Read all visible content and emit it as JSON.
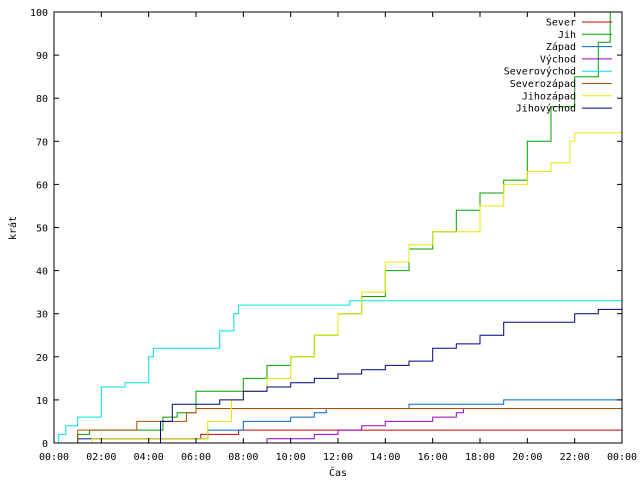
{
  "chart_data": {
    "type": "line",
    "xlabel": "Čas",
    "ylabel": "krát",
    "xlim": [
      0,
      24
    ],
    "ylim": [
      0,
      100
    ],
    "x_ticks": [
      {
        "v": 0,
        "label": "00:00"
      },
      {
        "v": 2,
        "label": "02:00"
      },
      {
        "v": 4,
        "label": "04:00"
      },
      {
        "v": 6,
        "label": "06:00"
      },
      {
        "v": 8,
        "label": "08:00"
      },
      {
        "v": 10,
        "label": "10:00"
      },
      {
        "v": 12,
        "label": "12:00"
      },
      {
        "v": 14,
        "label": "14:00"
      },
      {
        "v": 16,
        "label": "16:00"
      },
      {
        "v": 18,
        "label": "18:00"
      },
      {
        "v": 20,
        "label": "20:00"
      },
      {
        "v": 22,
        "label": "22:00"
      },
      {
        "v": 24,
        "label": "00:00"
      }
    ],
    "y_ticks": [
      0,
      10,
      20,
      30,
      40,
      50,
      60,
      70,
      80,
      90,
      100
    ],
    "legend_position": "top-right",
    "grid": false,
    "series": [
      {
        "name": "Sever",
        "color": "#cc0000",
        "points": [
          [
            0,
            0
          ],
          [
            0.9,
            0
          ],
          [
            1,
            1
          ],
          [
            5.5,
            1
          ],
          [
            6.2,
            2
          ],
          [
            7.5,
            2
          ],
          [
            7.8,
            3
          ],
          [
            24,
            3
          ]
        ]
      },
      {
        "name": "Jih",
        "color": "#00a000",
        "points": [
          [
            0,
            0
          ],
          [
            1,
            2
          ],
          [
            1.5,
            3
          ],
          [
            4,
            3
          ],
          [
            4.6,
            6
          ],
          [
            5.2,
            7
          ],
          [
            6,
            12
          ],
          [
            7.6,
            12
          ],
          [
            8,
            15
          ],
          [
            9,
            18
          ],
          [
            10,
            20
          ],
          [
            11,
            25
          ],
          [
            12,
            30
          ],
          [
            13,
            34
          ],
          [
            14,
            40
          ],
          [
            15,
            45
          ],
          [
            16,
            49
          ],
          [
            17,
            54
          ],
          [
            18,
            58
          ],
          [
            19,
            61
          ],
          [
            20,
            70
          ],
          [
            21,
            78
          ],
          [
            22,
            85
          ],
          [
            23,
            93
          ],
          [
            23.5,
            100
          ]
        ]
      },
      {
        "name": "Západ",
        "color": "#0066cc",
        "points": [
          [
            0,
            0
          ],
          [
            1,
            1
          ],
          [
            5,
            1
          ],
          [
            6.5,
            3
          ],
          [
            8,
            5
          ],
          [
            10,
            6
          ],
          [
            11,
            7
          ],
          [
            11.5,
            8
          ],
          [
            14,
            8
          ],
          [
            15,
            9
          ],
          [
            18,
            9
          ],
          [
            19,
            10
          ],
          [
            24,
            10
          ]
        ]
      },
      {
        "name": "Východ",
        "color": "#9900cc",
        "points": [
          [
            8.8,
            0
          ],
          [
            9,
            1
          ],
          [
            10,
            1
          ],
          [
            11,
            2
          ],
          [
            12,
            3
          ],
          [
            13,
            4
          ],
          [
            14,
            5
          ],
          [
            15,
            5
          ],
          [
            16,
            6
          ],
          [
            17,
            7
          ],
          [
            17.3,
            8
          ]
        ]
      },
      {
        "name": "Severovýchod",
        "color": "#00e0e0",
        "points": [
          [
            0,
            0
          ],
          [
            0.2,
            2
          ],
          [
            0.5,
            4
          ],
          [
            1,
            6
          ],
          [
            2,
            13
          ],
          [
            3,
            14
          ],
          [
            4,
            20
          ],
          [
            4.2,
            22
          ],
          [
            6.5,
            22
          ],
          [
            7,
            26
          ],
          [
            7.6,
            30
          ],
          [
            7.8,
            32
          ],
          [
            12,
            32
          ],
          [
            12.5,
            33
          ],
          [
            24,
            33
          ]
        ]
      },
      {
        "name": "Severozápad",
        "color": "#b05000",
        "points": [
          [
            0,
            0
          ],
          [
            1,
            3
          ],
          [
            3,
            3
          ],
          [
            3.5,
            5
          ],
          [
            5,
            5
          ],
          [
            5.6,
            7
          ],
          [
            6,
            8
          ],
          [
            24,
            8
          ]
        ]
      },
      {
        "name": "Jihozápad",
        "color": "#e8e800",
        "points": [
          [
            0,
            0
          ],
          [
            1.5,
            0
          ],
          [
            1.6,
            1
          ],
          [
            5,
            1
          ],
          [
            6.5,
            5
          ],
          [
            7.5,
            10
          ],
          [
            8,
            12
          ],
          [
            9,
            15
          ],
          [
            10,
            20
          ],
          [
            11,
            25
          ],
          [
            12,
            30
          ],
          [
            13,
            35
          ],
          [
            14,
            42
          ],
          [
            15,
            46
          ],
          [
            16,
            49
          ],
          [
            17,
            49
          ],
          [
            18,
            55
          ],
          [
            19,
            60
          ],
          [
            20,
            63
          ],
          [
            21,
            65
          ],
          [
            21.8,
            70
          ],
          [
            22,
            72
          ],
          [
            24,
            72
          ]
        ]
      },
      {
        "name": "Jihovýchod",
        "color": "#000080",
        "points": [
          [
            0,
            0
          ],
          [
            4,
            0
          ],
          [
            4.5,
            5
          ],
          [
            5,
            9
          ],
          [
            6,
            9
          ],
          [
            7,
            10
          ],
          [
            8,
            12
          ],
          [
            9,
            13
          ],
          [
            10,
            14
          ],
          [
            11,
            15
          ],
          [
            12,
            16
          ],
          [
            13,
            17
          ],
          [
            14,
            18
          ],
          [
            15,
            19
          ],
          [
            16,
            22
          ],
          [
            17,
            23
          ],
          [
            18,
            25
          ],
          [
            19,
            28
          ],
          [
            20,
            28
          ],
          [
            21,
            28
          ],
          [
            22,
            30
          ],
          [
            23,
            31
          ],
          [
            24,
            30
          ]
        ]
      }
    ]
  }
}
